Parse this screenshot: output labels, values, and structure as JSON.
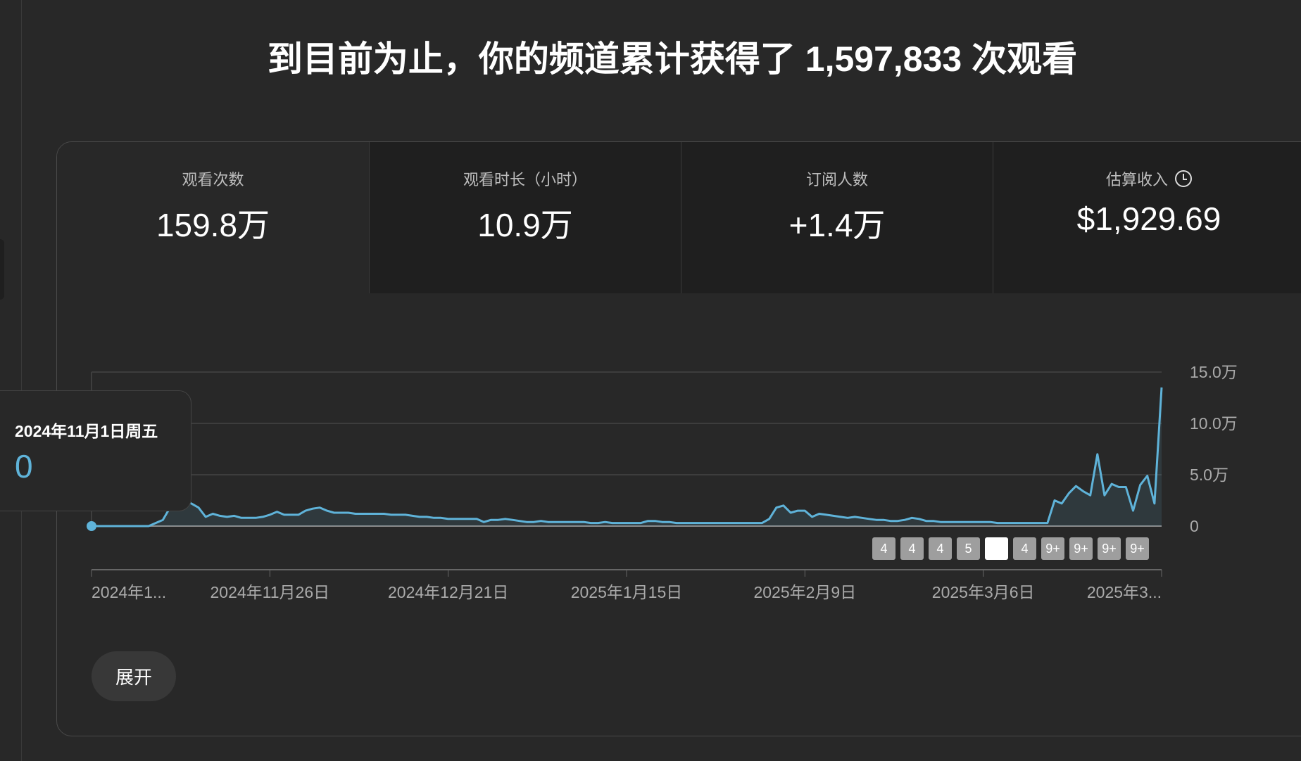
{
  "headline": "到目前为止，你的频道累计获得了 1,597,833 次观看",
  "metrics": [
    {
      "label": "观看次数",
      "value": "159.8万",
      "selected": true
    },
    {
      "label": "观看时长（小时）",
      "value": "10.9万"
    },
    {
      "label": "订阅人数",
      "value": "+1.4万"
    },
    {
      "label": "估算收入",
      "value": "$1,929.69",
      "icon": "clock-icon"
    }
  ],
  "tooltip": {
    "date": "2024年11月1日周五",
    "value": "0"
  },
  "badges": [
    "4",
    "4",
    "4",
    "5",
    "",
    "4",
    "9+",
    "9+",
    "9+",
    "9+"
  ],
  "expand_label": "展开",
  "colors": {
    "line": "#5fb3d9",
    "background": "#282828",
    "grid": "#3d3d3d"
  },
  "chart_data": {
    "type": "area",
    "ylim": [
      0,
      15
    ],
    "y_unit": "万",
    "y_ticks": [
      "0",
      "5.0万",
      "10.0万",
      "15.0万"
    ],
    "y_tick_values": [
      0,
      5,
      10,
      15
    ],
    "x_tick_labels": [
      "2024年1...",
      "2024年11月26日",
      "2024年12月21日",
      "2025年1月15日",
      "2025年2月9日",
      "2025年3月6日",
      "2025年3..."
    ],
    "x_tick_days": [
      0,
      25,
      50,
      75,
      100,
      125,
      150
    ],
    "grid": true,
    "values": [
      0,
      0,
      0,
      0,
      0,
      0,
      0,
      0,
      0,
      0.3,
      0.6,
      1.8,
      2.2,
      2.4,
      2.2,
      1.8,
      0.9,
      1.2,
      1.0,
      0.9,
      1.0,
      0.8,
      0.8,
      0.8,
      0.9,
      1.1,
      1.4,
      1.1,
      1.1,
      1.1,
      1.5,
      1.7,
      1.8,
      1.5,
      1.3,
      1.3,
      1.3,
      1.2,
      1.2,
      1.2,
      1.2,
      1.2,
      1.1,
      1.1,
      1.1,
      1.0,
      0.9,
      0.9,
      0.8,
      0.8,
      0.7,
      0.7,
      0.7,
      0.7,
      0.7,
      0.4,
      0.6,
      0.6,
      0.7,
      0.6,
      0.5,
      0.4,
      0.4,
      0.5,
      0.4,
      0.4,
      0.4,
      0.4,
      0.4,
      0.4,
      0.3,
      0.3,
      0.4,
      0.3,
      0.3,
      0.3,
      0.3,
      0.3,
      0.5,
      0.5,
      0.4,
      0.4,
      0.3,
      0.3,
      0.3,
      0.3,
      0.3,
      0.3,
      0.3,
      0.3,
      0.3,
      0.3,
      0.3,
      0.3,
      0.3,
      0.7,
      1.8,
      2.0,
      1.3,
      1.5,
      1.5,
      0.9,
      1.2,
      1.1,
      1.0,
      0.9,
      0.8,
      0.9,
      0.8,
      0.7,
      0.6,
      0.6,
      0.5,
      0.5,
      0.6,
      0.8,
      0.7,
      0.5,
      0.5,
      0.4,
      0.4,
      0.4,
      0.4,
      0.4,
      0.4,
      0.4,
      0.4,
      0.3,
      0.3,
      0.3,
      0.3,
      0.3,
      0.3,
      0.3,
      0.3,
      2.5,
      2.2,
      3.2,
      3.9,
      3.4,
      3.0,
      7.0,
      3.0,
      4.1,
      3.8,
      3.8,
      1.5,
      4.0,
      4.9,
      2.2,
      13.5
    ]
  }
}
